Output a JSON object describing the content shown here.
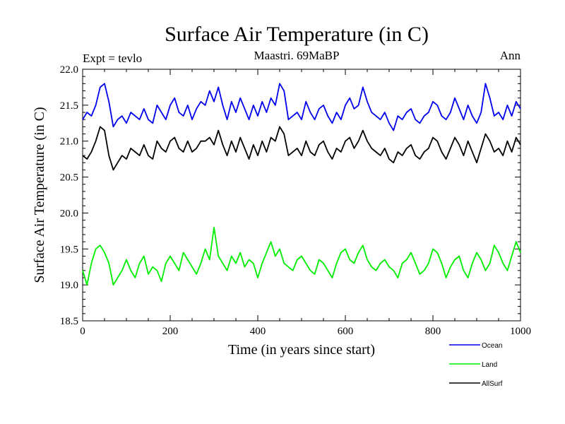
{
  "chart_data": {
    "type": "line",
    "title": "Surface Air Temperature (in C)",
    "subtitle_left": "Expt = tevlo",
    "subtitle_center": "Maastri.  69MaBP",
    "subtitle_right": "Ann",
    "xlabel": "Time (in years since start)",
    "ylabel": "Surface Air Temperature (in C)",
    "xlim": [
      0,
      1000
    ],
    "ylim": [
      18.5,
      22.0
    ],
    "xticks": [
      0,
      200,
      400,
      600,
      800,
      1000
    ],
    "xtick_labels": [
      "0",
      "200",
      "400",
      "600",
      "800",
      "1000"
    ],
    "yticks": [
      18.5,
      19.0,
      19.5,
      20.0,
      20.5,
      21.0,
      21.5,
      22.0
    ],
    "ytick_labels": [
      "18.5",
      "19.0",
      "19.5",
      "20.0",
      "20.5",
      "21.0",
      "21.5",
      "22.0"
    ],
    "grid": false,
    "legend_position": "bottom-right, below plot",
    "series": [
      {
        "name": "Ocean",
        "color": "#0000ee",
        "x": [
          0,
          10,
          20,
          30,
          40,
          50,
          60,
          70,
          80,
          90,
          100,
          110,
          120,
          130,
          140,
          150,
          160,
          170,
          180,
          190,
          200,
          210,
          220,
          230,
          240,
          250,
          260,
          270,
          280,
          290,
          300,
          310,
          320,
          330,
          340,
          350,
          360,
          370,
          380,
          390,
          400,
          410,
          420,
          430,
          440,
          450,
          460,
          470,
          480,
          490,
          500,
          510,
          520,
          530,
          540,
          550,
          560,
          570,
          580,
          590,
          600,
          610,
          620,
          630,
          640,
          650,
          660,
          670,
          680,
          690,
          700,
          710,
          720,
          730,
          740,
          750,
          760,
          770,
          780,
          790,
          800,
          810,
          820,
          830,
          840,
          850,
          860,
          870,
          880,
          890,
          900,
          910,
          920,
          930,
          940,
          950,
          960,
          970,
          980,
          990,
          1000
        ],
        "values": [
          21.3,
          21.4,
          21.35,
          21.5,
          21.75,
          21.8,
          21.55,
          21.2,
          21.3,
          21.35,
          21.25,
          21.4,
          21.35,
          21.3,
          21.45,
          21.3,
          21.25,
          21.5,
          21.4,
          21.3,
          21.5,
          21.6,
          21.4,
          21.35,
          21.5,
          21.3,
          21.45,
          21.55,
          21.5,
          21.7,
          21.55,
          21.75,
          21.5,
          21.3,
          21.55,
          21.4,
          21.6,
          21.45,
          21.3,
          21.5,
          21.35,
          21.55,
          21.4,
          21.6,
          21.5,
          21.8,
          21.7,
          21.3,
          21.35,
          21.4,
          21.3,
          21.55,
          21.4,
          21.3,
          21.45,
          21.5,
          21.35,
          21.25,
          21.4,
          21.3,
          21.5,
          21.6,
          21.45,
          21.5,
          21.75,
          21.55,
          21.4,
          21.35,
          21.3,
          21.4,
          21.25,
          21.15,
          21.35,
          21.3,
          21.4,
          21.45,
          21.3,
          21.25,
          21.35,
          21.4,
          21.55,
          21.5,
          21.35,
          21.3,
          21.4,
          21.6,
          21.45,
          21.3,
          21.5,
          21.35,
          21.25,
          21.4,
          21.8,
          21.6,
          21.35,
          21.4,
          21.3,
          21.5,
          21.35,
          21.55,
          21.45
        ]
      },
      {
        "name": "Land",
        "color": "#00ee00",
        "x": [
          0,
          10,
          20,
          30,
          40,
          50,
          60,
          70,
          80,
          90,
          100,
          110,
          120,
          130,
          140,
          150,
          160,
          170,
          180,
          190,
          200,
          210,
          220,
          230,
          240,
          250,
          260,
          270,
          280,
          290,
          300,
          310,
          320,
          330,
          340,
          350,
          360,
          370,
          380,
          390,
          400,
          410,
          420,
          430,
          440,
          450,
          460,
          470,
          480,
          490,
          500,
          510,
          520,
          530,
          540,
          550,
          560,
          570,
          580,
          590,
          600,
          610,
          620,
          630,
          640,
          650,
          660,
          670,
          680,
          690,
          700,
          710,
          720,
          730,
          740,
          750,
          760,
          770,
          780,
          790,
          800,
          810,
          820,
          830,
          840,
          850,
          860,
          870,
          880,
          890,
          900,
          910,
          920,
          930,
          940,
          950,
          960,
          970,
          980,
          990,
          1000
        ],
        "values": [
          19.2,
          19.0,
          19.3,
          19.5,
          19.55,
          19.45,
          19.3,
          19.0,
          19.1,
          19.2,
          19.35,
          19.2,
          19.1,
          19.3,
          19.4,
          19.15,
          19.25,
          19.2,
          19.05,
          19.3,
          19.4,
          19.3,
          19.2,
          19.45,
          19.35,
          19.25,
          19.15,
          19.3,
          19.5,
          19.35,
          19.8,
          19.4,
          19.3,
          19.2,
          19.4,
          19.3,
          19.45,
          19.25,
          19.35,
          19.3,
          19.1,
          19.3,
          19.45,
          19.6,
          19.4,
          19.5,
          19.3,
          19.25,
          19.2,
          19.35,
          19.4,
          19.3,
          19.2,
          19.15,
          19.35,
          19.3,
          19.2,
          19.1,
          19.3,
          19.45,
          19.5,
          19.35,
          19.3,
          19.45,
          19.55,
          19.35,
          19.25,
          19.2,
          19.3,
          19.35,
          19.25,
          19.2,
          19.1,
          19.3,
          19.35,
          19.45,
          19.3,
          19.15,
          19.2,
          19.3,
          19.5,
          19.45,
          19.3,
          19.1,
          19.25,
          19.35,
          19.4,
          19.2,
          19.1,
          19.3,
          19.45,
          19.35,
          19.2,
          19.3,
          19.55,
          19.45,
          19.3,
          19.2,
          19.4,
          19.6,
          19.45
        ]
      },
      {
        "name": "AllSurf",
        "color": "#000000",
        "x": [
          0,
          10,
          20,
          30,
          40,
          50,
          60,
          70,
          80,
          90,
          100,
          110,
          120,
          130,
          140,
          150,
          160,
          170,
          180,
          190,
          200,
          210,
          220,
          230,
          240,
          250,
          260,
          270,
          280,
          290,
          300,
          310,
          320,
          330,
          340,
          350,
          360,
          370,
          380,
          390,
          400,
          410,
          420,
          430,
          440,
          450,
          460,
          470,
          480,
          490,
          500,
          510,
          520,
          530,
          540,
          550,
          560,
          570,
          580,
          590,
          600,
          610,
          620,
          630,
          640,
          650,
          660,
          670,
          680,
          690,
          700,
          710,
          720,
          730,
          740,
          750,
          760,
          770,
          780,
          790,
          800,
          810,
          820,
          830,
          840,
          850,
          860,
          870,
          880,
          890,
          900,
          910,
          920,
          930,
          940,
          950,
          960,
          970,
          980,
          990,
          1000
        ],
        "values": [
          20.8,
          20.75,
          20.85,
          21.0,
          21.2,
          21.15,
          20.8,
          20.6,
          20.7,
          20.8,
          20.75,
          20.9,
          20.85,
          20.8,
          20.95,
          20.8,
          20.75,
          21.0,
          20.9,
          20.85,
          21.0,
          21.05,
          20.9,
          20.85,
          21.0,
          20.85,
          20.9,
          21.0,
          21.0,
          21.05,
          20.95,
          21.15,
          20.95,
          20.8,
          21.0,
          20.85,
          21.05,
          20.9,
          20.75,
          20.95,
          20.8,
          21.0,
          20.85,
          21.05,
          21.0,
          21.2,
          21.1,
          20.8,
          20.85,
          20.9,
          20.8,
          21.0,
          20.85,
          20.8,
          20.95,
          21.0,
          20.85,
          20.75,
          20.9,
          20.85,
          21.0,
          21.05,
          20.9,
          21.0,
          21.15,
          21.0,
          20.9,
          20.85,
          20.8,
          20.9,
          20.75,
          20.7,
          20.85,
          20.8,
          20.9,
          20.95,
          20.8,
          20.75,
          20.85,
          20.9,
          21.05,
          21.0,
          20.85,
          20.75,
          20.9,
          21.05,
          20.95,
          20.8,
          21.0,
          20.85,
          20.7,
          20.9,
          21.1,
          21.0,
          20.85,
          20.9,
          20.8,
          21.0,
          20.85,
          21.05,
          20.95
        ]
      }
    ]
  }
}
